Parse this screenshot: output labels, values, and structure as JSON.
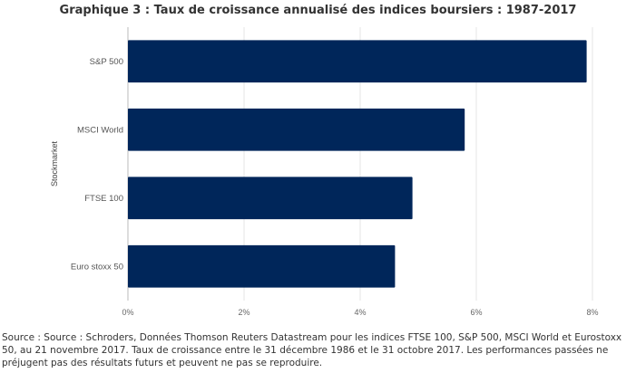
{
  "chart_data": {
    "type": "bar",
    "orientation": "horizontal",
    "title": "Graphique 3 : Taux de croissance annualisé des indices boursiers : 1987-2017",
    "ylabel": "Stockmarket",
    "xlabel": "",
    "categories": [
      "S&P 500",
      "MSCI World",
      "FTSE 100",
      "Euro stoxx 50"
    ],
    "values": [
      7.9,
      5.8,
      4.9,
      4.6
    ],
    "xlim": [
      0,
      8
    ],
    "xticks": [
      0,
      2,
      4,
      6,
      8
    ],
    "xtick_labels": [
      "0%",
      "2%",
      "4%",
      "6%",
      "8%"
    ],
    "grid": true,
    "bar_color": "#00265a"
  },
  "source_note": "Source : Source : Schroders, Données Thomson Reuters Datastream pour les indices FTSE 100, S&P 500, MSCI World et Eurostoxx 50, au 21 novembre 2017. Taux de croissance entre le 31 décembre 1986 et le 31 octobre 2017. Les performances passées ne préjugent pas des résultats futurs et peuvent ne pas se reproduire.",
  "colors": {
    "grid": "#e4e4e4",
    "axis": "#bbbbbb"
  }
}
